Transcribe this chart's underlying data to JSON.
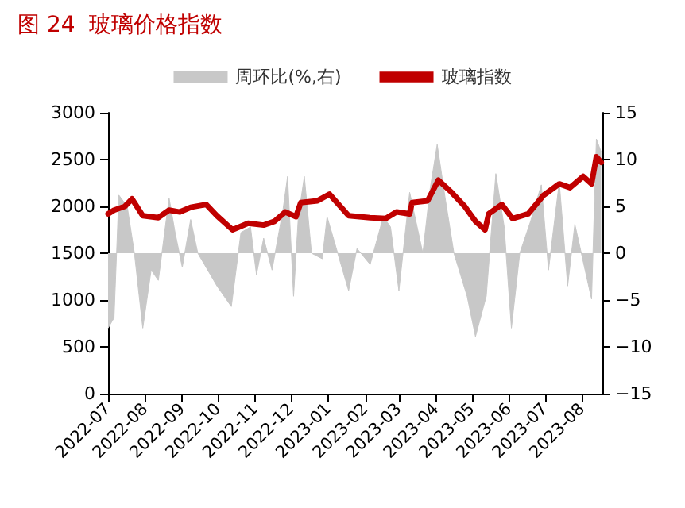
{
  "chart_data": {
    "type": "line",
    "title": "图 24  玻璃价格指数",
    "series": [
      {
        "name": "周环比(%,右)",
        "type": "area",
        "axis": "y2",
        "color": "#c8c8c8",
        "x": [
          "2022-07-01",
          "2022-07-06",
          "2022-07-10",
          "2022-07-17",
          "2022-07-23",
          "2022-07-30",
          "2022-08-06",
          "2022-08-12",
          "2022-08-21",
          "2022-08-26",
          "2022-09-01",
          "2022-09-08",
          "2022-09-14",
          "2022-09-30",
          "2022-10-12",
          "2022-10-20",
          "2022-10-28",
          "2022-11-02",
          "2022-11-08",
          "2022-11-15",
          "2022-11-24",
          "2022-11-28",
          "2022-12-03",
          "2022-12-07",
          "2022-12-12",
          "2022-12-18",
          "2022-12-27",
          "2022-12-31",
          "2023-01-18",
          "2023-01-25",
          "2023-02-05",
          "2023-02-16",
          "2023-02-22",
          "2023-03-01",
          "2023-03-10",
          "2023-03-21",
          "2023-03-27",
          "2023-04-02",
          "2023-04-09",
          "2023-04-16",
          "2023-04-27",
          "2023-05-04",
          "2023-05-13",
          "2023-05-21",
          "2023-05-28",
          "2023-06-03",
          "2023-06-10",
          "2023-06-19",
          "2023-06-28",
          "2023-07-04",
          "2023-07-13",
          "2023-07-20",
          "2023-07-26",
          "2023-08-09",
          "2023-08-13",
          "2023-08-17"
        ],
        "values": [
          -8,
          -6.9,
          6.2,
          5,
          0,
          -8,
          -1.8,
          -2.9,
          5.9,
          2.2,
          -1.5,
          3.6,
          0,
          -3.5,
          -5.7,
          2.2,
          2.8,
          -2.3,
          1.6,
          -1.8,
          4.5,
          8.2,
          -4.6,
          3.9,
          8.2,
          0,
          -0.6,
          3.9,
          -4,
          0.5,
          -1.2,
          3.9,
          2.8,
          -4,
          6.5,
          0,
          6.8,
          11.6,
          5.6,
          0,
          -4.6,
          -8.9,
          -4.6,
          8.5,
          2.8,
          -8,
          0,
          3.4,
          7.3,
          -1.8,
          7.6,
          -3.5,
          3.1,
          -4.9,
          12.2,
          10.8
        ]
      },
      {
        "name": "玻璃指数",
        "type": "line",
        "color": "#c00000",
        "x": [
          "2022-07-01",
          "2022-07-06",
          "2022-07-15",
          "2022-07-21",
          "2022-07-30",
          "2022-08-12",
          "2022-08-21",
          "2022-08-30",
          "2022-09-08",
          "2022-09-21",
          "2022-09-30",
          "2022-10-13",
          "2022-10-26",
          "2022-11-08",
          "2022-11-17",
          "2022-11-26",
          "2022-12-05",
          "2022-12-09",
          "2022-12-23",
          "2023-01-02",
          "2023-01-18",
          "2023-02-05",
          "2023-02-18",
          "2023-02-27",
          "2023-03-10",
          "2023-03-12",
          "2023-03-25",
          "2023-04-03",
          "2023-04-14",
          "2023-04-25",
          "2023-05-04",
          "2023-05-12",
          "2023-05-15",
          "2023-05-26",
          "2023-06-04",
          "2023-06-17",
          "2023-06-30",
          "2023-07-13",
          "2023-07-22",
          "2023-08-02",
          "2023-08-09",
          "2023-08-13",
          "2023-08-17"
        ],
        "values": [
          1920,
          1960,
          2000,
          2080,
          1900,
          1880,
          1960,
          1940,
          1990,
          2020,
          1900,
          1750,
          1820,
          1800,
          1840,
          1940,
          1890,
          2040,
          2060,
          2130,
          1900,
          1880,
          1870,
          1940,
          1920,
          2040,
          2060,
          2280,
          2150,
          2000,
          1840,
          1750,
          1920,
          2020,
          1870,
          1920,
          2120,
          2240,
          2200,
          2320,
          2240,
          2530,
          2470
        ]
      }
    ],
    "xlim": [
      "2022-07-01",
      "2023-08-18"
    ],
    "xticks": [
      "2022-07",
      "2022-08",
      "2022-09",
      "2022-10",
      "2022-11",
      "2022-12",
      "2023-01",
      "2023-02",
      "2023-03",
      "2023-04",
      "2023-05",
      "2023-06",
      "2023-07",
      "2023-08"
    ],
    "ylim": [
      0,
      3000
    ],
    "yticks": [
      0,
      500,
      1000,
      1500,
      2000,
      2500,
      3000
    ],
    "y2lim": [
      -15,
      15
    ],
    "y2ticks": [
      -15,
      -10,
      -5,
      0,
      5,
      10,
      15
    ],
    "legend": "top",
    "grid": false,
    "marker": "none"
  }
}
